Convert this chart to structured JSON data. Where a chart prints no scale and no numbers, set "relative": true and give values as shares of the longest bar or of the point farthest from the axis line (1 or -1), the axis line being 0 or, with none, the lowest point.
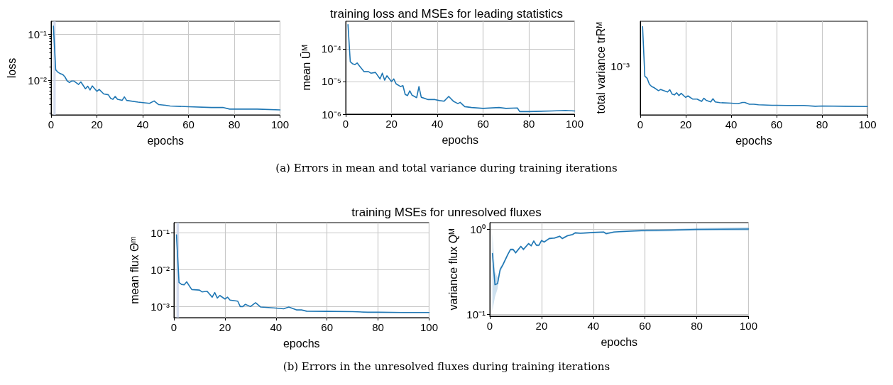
{
  "chart_data": [
    {
      "type": "line",
      "ylabel": "loss",
      "xlabel": "epochs",
      "log": "y",
      "grid": true,
      "marker": "none",
      "line_style": "solid",
      "xlim": [
        0,
        100
      ],
      "xticks": [
        0,
        20,
        40,
        60,
        80,
        100
      ],
      "ylim": [
        0.0018,
        0.19
      ],
      "yticks": [
        {
          "value": 0.1,
          "label": "10⁻¹"
        },
        {
          "value": 0.01,
          "label": "10⁻²"
        },
        {
          "value": 0.002,
          "label": null
        },
        {
          "value": 0.003,
          "label": null
        },
        {
          "value": 0.004,
          "label": null
        },
        {
          "value": 0.005,
          "label": null
        },
        {
          "value": 0.006,
          "label": null
        },
        {
          "value": 0.007,
          "label": null
        },
        {
          "value": 0.008,
          "label": null
        },
        {
          "value": 0.009,
          "label": null
        },
        {
          "value": 0.02,
          "label": null
        },
        {
          "value": 0.03,
          "label": null
        },
        {
          "value": 0.04,
          "label": null
        },
        {
          "value": 0.05,
          "label": null
        },
        {
          "value": 0.06,
          "label": null
        },
        {
          "value": 0.07,
          "label": null
        },
        {
          "value": 0.08,
          "label": null
        },
        {
          "value": 0.09,
          "label": null
        }
      ],
      "bands": [
        {
          "axis": "x",
          "from": 1,
          "to": 2,
          "color": "#c9d3ea"
        }
      ],
      "series": [
        {
          "color": "#1f77b4",
          "x": [
            1,
            2,
            3,
            4,
            5,
            6,
            7,
            8,
            9,
            10,
            12,
            13,
            15,
            16,
            17,
            18,
            20,
            21,
            23,
            25,
            26,
            27,
            28,
            29,
            31,
            32,
            33,
            38,
            43,
            45,
            47,
            50,
            52,
            60,
            70,
            75,
            78,
            90,
            100
          ],
          "values": [
            0.15,
            0.017,
            0.015,
            0.014,
            0.0135,
            0.012,
            0.0098,
            0.009,
            0.0097,
            0.0097,
            0.0082,
            0.0093,
            0.0066,
            0.0075,
            0.0062,
            0.0076,
            0.0058,
            0.0064,
            0.0051,
            0.0049,
            0.0041,
            0.0039,
            0.0045,
            0.0039,
            0.0037,
            0.0044,
            0.0037,
            0.0034,
            0.0032,
            0.0036,
            0.003,
            0.0029,
            0.0028,
            0.0027,
            0.0026,
            0.0026,
            0.0024,
            0.0024,
            0.0023
          ]
        }
      ]
    },
    {
      "type": "line",
      "title": "training loss and MSEs for leading statistics",
      "ylabel": "mean Ūᴹ",
      "xlabel": "epochs",
      "log": "y",
      "grid": true,
      "marker": "none",
      "line_style": "solid",
      "annotations": [
        "(a) Errors in mean and total variance during training iterations"
      ],
      "xlim": [
        0,
        100
      ],
      "xticks": [
        0,
        20,
        40,
        60,
        80,
        100
      ],
      "ylim": [
        1e-06,
        0.0007
      ],
      "yticks": [
        {
          "value": 0.0001,
          "label": "10⁻⁴"
        },
        {
          "value": 1e-05,
          "label": "10⁻⁵"
        },
        {
          "value": 1e-06,
          "label": "10⁻⁶"
        }
      ],
      "series": [
        {
          "color": "#1f77b4",
          "x": [
            1,
            2,
            3,
            4,
            5,
            6,
            8,
            10,
            11,
            13,
            15,
            16,
            17,
            18,
            20,
            21,
            22,
            24,
            25,
            26,
            27,
            28,
            29,
            31,
            32,
            33,
            36,
            39,
            41,
            43,
            45,
            47,
            49,
            50,
            52,
            55,
            60,
            67,
            70,
            75,
            76,
            80,
            90,
            96,
            100
          ],
          "values": [
            0.00055,
            4e-05,
            3.5e-05,
            3.3e-05,
            3.7e-05,
            3e-05,
            2e-05,
            2e-05,
            1.8e-05,
            1.9e-05,
            1.2e-05,
            1.8e-05,
            1.1e-05,
            1.5e-05,
            1e-05,
            1.2e-05,
            8.5e-06,
            7e-06,
            7.5e-06,
            4e-06,
            3.7e-06,
            5.2e-06,
            3.8e-06,
            3.2e-06,
            7e-06,
            3.3e-06,
            2.8e-06,
            2.8e-06,
            2.6e-06,
            2.5e-06,
            3.5e-06,
            2.5e-06,
            2.1e-06,
            2.3e-06,
            1.7e-06,
            1.6e-06,
            1.5e-06,
            1.6e-06,
            1.5e-06,
            1.55e-06,
            1.2e-06,
            1.2e-06,
            1.25e-06,
            1.3e-06,
            1.25e-06
          ]
        }
      ]
    },
    {
      "type": "line",
      "ylabel": "total variance trRᴹ",
      "xlabel": "epochs",
      "grid": "x",
      "marker": "none",
      "line_style": "solid",
      "relative": true,
      "xlim": [
        0,
        100
      ],
      "xticks": [
        0,
        20,
        40,
        60,
        80,
        100
      ],
      "annotations": [
        "10⁻³"
      ],
      "series": [
        {
          "color": "#1f77b4",
          "x": [
            1,
            2,
            3,
            4,
            5,
            6,
            8,
            9,
            12,
            13,
            14,
            15,
            16,
            17,
            18,
            20,
            21,
            23,
            25,
            27,
            28,
            29,
            31,
            32,
            33,
            35,
            40,
            43,
            45,
            46,
            48,
            50,
            52,
            58,
            60,
            65,
            72,
            77,
            80,
            90,
            100
          ],
          "values": [
            1,
            0.438,
            0.415,
            0.347,
            0.321,
            0.309,
            0.274,
            0.288,
            0.259,
            0.285,
            0.235,
            0.226,
            0.25,
            0.218,
            0.244,
            0.197,
            0.215,
            0.179,
            0.179,
            0.153,
            0.188,
            0.165,
            0.147,
            0.182,
            0.147,
            0.138,
            0.132,
            0.126,
            0.141,
            0.141,
            0.121,
            0.121,
            0.115,
            0.109,
            0.109,
            0.106,
            0.106,
            0.097,
            0.1,
            0.097,
            0.094
          ]
        }
      ]
    },
    {
      "type": "line",
      "title": "training MSEs for unresolved fluxes",
      "ylabel": "mean flux Θᵐ",
      "xlabel": "epochs",
      "log": "y",
      "grid": true,
      "marker": "none",
      "line_style": "solid",
      "xlim": [
        0,
        100
      ],
      "xticks": [
        0,
        20,
        40,
        60,
        80,
        100
      ],
      "ylim": [
        0.0005,
        0.19
      ],
      "yticks": [
        {
          "value": 0.1,
          "label": "10⁻¹"
        },
        {
          "value": 0.01,
          "label": "10⁻²"
        },
        {
          "value": 0.001,
          "label": "10⁻³"
        }
      ],
      "bands": [
        {
          "axis": "x",
          "from": 1,
          "to": 2,
          "color": "#c9d3ea"
        }
      ],
      "series": [
        {
          "color": "#1f77b4",
          "x": [
            1,
            2,
            3,
            4,
            5,
            7,
            10,
            11,
            13,
            15,
            16,
            17,
            18,
            20,
            21,
            22,
            25,
            26,
            27,
            28,
            30,
            32,
            34,
            40,
            43,
            45,
            48,
            50,
            52,
            60,
            70,
            76,
            80,
            90,
            100
          ],
          "values": [
            0.088,
            0.0045,
            0.004,
            0.0039,
            0.0047,
            0.0029,
            0.0028,
            0.0025,
            0.0026,
            0.0018,
            0.0024,
            0.0017,
            0.002,
            0.0016,
            0.0018,
            0.0015,
            0.0014,
            0.001,
            0.001,
            0.00115,
            0.001,
            0.00127,
            0.00097,
            0.00091,
            0.00087,
            0.00097,
            0.00081,
            0.00081,
            0.00075,
            0.00074,
            0.00073,
            0.0007,
            0.0007,
            0.00069,
            0.00069
          ]
        }
      ]
    },
    {
      "type": "line",
      "ylabel": "variance flux Qᴹ",
      "xlabel": "epochs",
      "log": "y",
      "grid": true,
      "marker": "none",
      "line_style": "solid",
      "annotations": [
        "(b) Errors in the unresolved fluxes during training iterations"
      ],
      "xlim": [
        0,
        100
      ],
      "xticks": [
        0,
        20,
        40,
        60,
        80,
        100
      ],
      "ylim": [
        0.095,
        1.2
      ],
      "yticks": [
        {
          "value": 1,
          "label": "10⁰"
        },
        {
          "value": 0.1,
          "label": "10⁻¹"
        }
      ],
      "series": [
        {
          "color": "#1f77b4",
          "x": [
            1,
            2,
            3,
            4,
            5,
            7,
            8,
            9,
            10,
            12,
            13,
            15,
            16,
            17,
            18,
            19,
            20,
            21,
            23,
            25,
            27,
            28,
            30,
            32,
            33,
            35,
            40,
            44,
            45,
            48,
            50,
            60,
            70,
            80,
            100
          ],
          "values": [
            0.52,
            0.223,
            0.23,
            0.337,
            0.38,
            0.51,
            0.58,
            0.58,
            0.53,
            0.63,
            0.58,
            0.68,
            0.64,
            0.73,
            0.65,
            0.65,
            0.74,
            0.71,
            0.78,
            0.79,
            0.83,
            0.78,
            0.84,
            0.87,
            0.91,
            0.9,
            0.92,
            0.93,
            0.89,
            0.93,
            0.94,
            0.97,
            0.98,
            1.0,
            1.01
          ],
          "lower": [
            0.11,
            0.16,
            0.2,
            0.31,
            0.36,
            0.49,
            0.56,
            0.56,
            0.51,
            0.61,
            0.56,
            0.66,
            0.62,
            0.71,
            0.63,
            0.63,
            0.72,
            0.69,
            0.76,
            0.77,
            0.81,
            0.76,
            0.82,
            0.85,
            0.89,
            0.88,
            0.9,
            0.91,
            0.86,
            0.91,
            0.92,
            0.94,
            0.95,
            0.96,
            0.96
          ],
          "upper": [
            0.9,
            0.32,
            0.27,
            0.36,
            0.4,
            0.53,
            0.6,
            0.6,
            0.55,
            0.65,
            0.6,
            0.7,
            0.66,
            0.75,
            0.67,
            0.67,
            0.76,
            0.73,
            0.8,
            0.81,
            0.85,
            0.8,
            0.86,
            0.89,
            0.93,
            0.92,
            0.94,
            0.95,
            0.92,
            0.95,
            0.96,
            1.0,
            1.01,
            1.04,
            1.06
          ]
        }
      ]
    }
  ]
}
